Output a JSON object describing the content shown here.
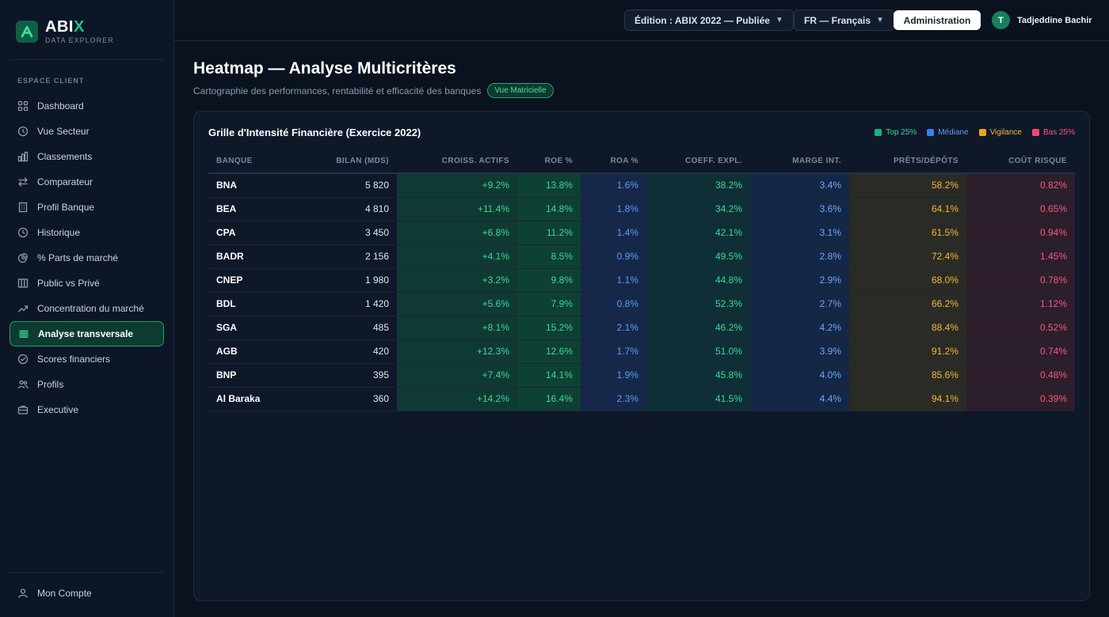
{
  "brand": {
    "name_part1": "ABI",
    "name_part2": "X",
    "subtitle": "DATA EXPLORER",
    "logo_letter": "A"
  },
  "sidebar": {
    "section_label": "ESPACE CLIENT",
    "items": [
      {
        "label": "Dashboard",
        "icon": "grid-icon"
      },
      {
        "label": "Vue Secteur",
        "icon": "clock-icon"
      },
      {
        "label": "Classements",
        "icon": "bar-chart-icon"
      },
      {
        "label": "Comparateur",
        "icon": "swap-arrows-icon"
      },
      {
        "label": "Profil Banque",
        "icon": "building-icon"
      },
      {
        "label": "Historique",
        "icon": "history-icon"
      },
      {
        "label": "% Parts de marché",
        "icon": "pie-chart-icon"
      },
      {
        "label": "Public vs Privé",
        "icon": "columns-icon"
      },
      {
        "label": "Concentration du marché",
        "icon": "trend-up-icon"
      },
      {
        "label": "Analyse transversale",
        "icon": "list-icon",
        "active": true
      },
      {
        "label": "Scores financiers",
        "icon": "check-circle-icon"
      },
      {
        "label": "Profils",
        "icon": "users-icon"
      },
      {
        "label": "Executive",
        "icon": "briefcase-icon"
      }
    ],
    "account_label": "Mon Compte"
  },
  "topbar": {
    "edition_select": "Édition : ABIX 2022 — Publiée",
    "language_select": "FR — Français",
    "admin_button": "Administration",
    "user_initial": "T",
    "user_name": "Tadjeddine Bachir"
  },
  "page": {
    "title": "Heatmap — Analyse Multicritères",
    "subtitle": "Cartographie des performances, rentabilité et efficacité des banques",
    "badge": "Vue Matricielle"
  },
  "card": {
    "title": "Grille d'Intensité Financière (Exercice 2022)",
    "legend": [
      {
        "label": "Top 25%",
        "color": "#19b37e"
      },
      {
        "label": "Médiane",
        "color": "#3b7ef0"
      },
      {
        "label": "Vigilance",
        "color": "#e9a623"
      },
      {
        "label": "Bas 25%",
        "color": "#ee4a70"
      }
    ]
  },
  "table": {
    "headers": [
      "BANQUE",
      "BILAN (MDS)",
      "CROISS. ACTIFS",
      "ROE %",
      "ROA %",
      "COEFF. EXPL.",
      "MARGE INT.",
      "PRÊTS/DÉPÔTS",
      "COÛT RISQUE"
    ],
    "rows": [
      [
        "BNA",
        "5 820",
        "+9.2%",
        "13.8%",
        "1.6%",
        "38.2%",
        "3.4%",
        "58.2%",
        "0.82%"
      ],
      [
        "BEA",
        "4 810",
        "+11.4%",
        "14.8%",
        "1.8%",
        "34.2%",
        "3.6%",
        "64.1%",
        "0.65%"
      ],
      [
        "CPA",
        "3 450",
        "+6.8%",
        "11.2%",
        "1.4%",
        "42.1%",
        "3.1%",
        "61.5%",
        "0.94%"
      ],
      [
        "BADR",
        "2 156",
        "+4.1%",
        "8.5%",
        "0.9%",
        "49.5%",
        "2.8%",
        "72.4%",
        "1.45%"
      ],
      [
        "CNEP",
        "1 980",
        "+3.2%",
        "9.8%",
        "1.1%",
        "44.8%",
        "2.9%",
        "68.0%",
        "0.78%"
      ],
      [
        "BDL",
        "1 420",
        "+5.6%",
        "7.9%",
        "0.8%",
        "52.3%",
        "2.7%",
        "66.2%",
        "1.12%"
      ],
      [
        "SGA",
        "485",
        "+8.1%",
        "15.2%",
        "2.1%",
        "46.2%",
        "4.2%",
        "88.4%",
        "0.52%"
      ],
      [
        "AGB",
        "420",
        "+12.3%",
        "12.6%",
        "1.7%",
        "51.0%",
        "3.9%",
        "91.2%",
        "0.74%"
      ],
      [
        "BNP",
        "395",
        "+7.4%",
        "14.1%",
        "1.9%",
        "45.8%",
        "4.0%",
        "85.6%",
        "0.48%"
      ],
      [
        "Al Baraka",
        "360",
        "+14.2%",
        "16.4%",
        "2.3%",
        "41.5%",
        "4.4%",
        "94.1%",
        "0.39%"
      ]
    ]
  }
}
